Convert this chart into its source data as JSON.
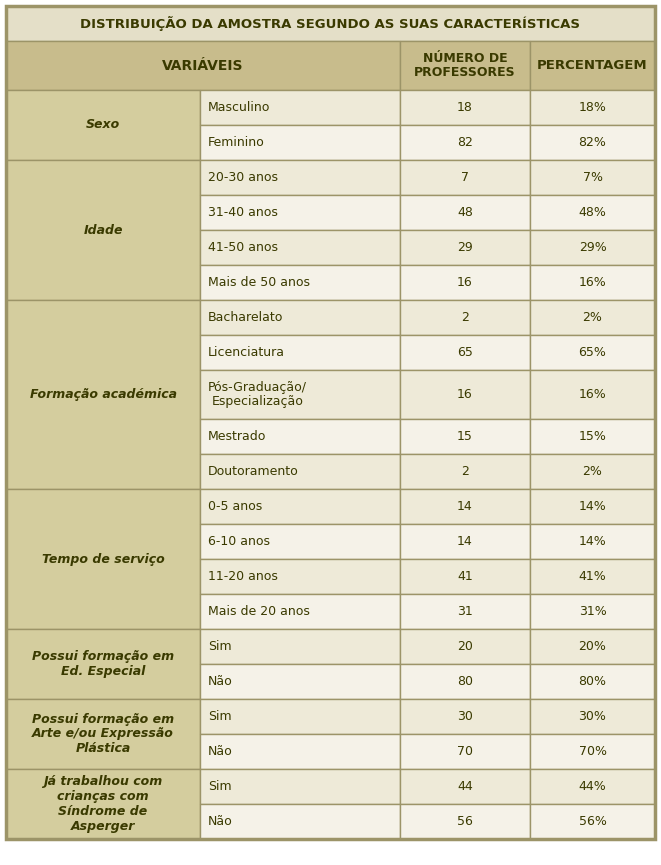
{
  "title": "DISTRIBUIÇÃO DA AMOSTRA SEGUNDO AS SUAS CARACTERÍSTICAS",
  "col_headers": [
    "VARIÁVEIS",
    "NÚMERO DE\nPROFESSORES",
    "PERCENTAGEM"
  ],
  "groups": [
    {
      "label": "Sexo",
      "rows": [
        [
          "Masculino",
          "18",
          "18%"
        ],
        [
          "Feminino",
          "82",
          "82%"
        ]
      ]
    },
    {
      "label": "Idade",
      "rows": [
        [
          "20-30 anos",
          "7",
          "7%"
        ],
        [
          "31-40 anos",
          "48",
          "48%"
        ],
        [
          "41-50 anos",
          "29",
          "29%"
        ],
        [
          "Mais de 50 anos",
          "16",
          "16%"
        ]
      ]
    },
    {
      "label": "Formação académica",
      "rows": [
        [
          "Bacharelato",
          "2",
          "2%"
        ],
        [
          "Licenciatura",
          "65",
          "65%"
        ],
        [
          "Pós-Graduação/\nEspecialização",
          "16",
          "16%"
        ],
        [
          "Mestrado",
          "15",
          "15%"
        ],
        [
          "Doutoramento",
          "2",
          "2%"
        ]
      ]
    },
    {
      "label": "Tempo de serviço",
      "rows": [
        [
          "0-5 anos",
          "14",
          "14%"
        ],
        [
          "6-10 anos",
          "14",
          "14%"
        ],
        [
          "11-20 anos",
          "41",
          "41%"
        ],
        [
          "Mais de 20 anos",
          "31",
          "31%"
        ]
      ]
    },
    {
      "label": "Possui formação em\nEd. Especial",
      "rows": [
        [
          "Sim",
          "20",
          "20%"
        ],
        [
          "Não",
          "80",
          "80%"
        ]
      ]
    },
    {
      "label": "Possui formação em\nArte e/ou Expressão\nPlástica",
      "rows": [
        [
          "Sim",
          "30",
          "30%"
        ],
        [
          "Não",
          "70",
          "70%"
        ]
      ]
    },
    {
      "label": "Já trabalhou com\ncrianças com\nSíndrome de\nAsperger",
      "rows": [
        [
          "Sim",
          "44",
          "44%"
        ],
        [
          "Não",
          "56",
          "56%"
        ]
      ]
    }
  ],
  "colors": {
    "header_bg": "#c8bc8c",
    "group_label_bg": "#d4cd9e",
    "row_bg_even": "#eeead8",
    "row_bg_odd": "#f5f2e8",
    "border": "#9c9468",
    "header_text": "#3a3a00",
    "body_text": "#3a3a00",
    "title_bg": "#e4dfc8",
    "outer_bg": "#ffffff"
  }
}
